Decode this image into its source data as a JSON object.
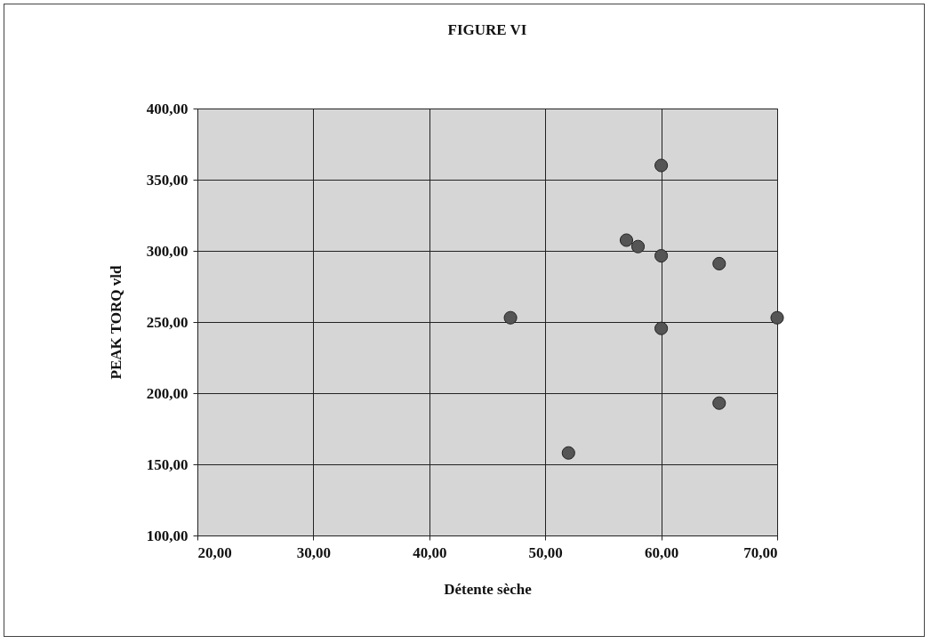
{
  "chart_data": {
    "type": "scatter",
    "title": "FIGURE VI",
    "xlabel": "Détente sèche",
    "ylabel": "PEAK TORQ vld",
    "x": [
      47,
      52,
      57,
      58,
      60,
      60,
      60,
      65,
      65,
      70
    ],
    "series": [
      {
        "color": "#555555",
        "values": [
          253,
          158,
          307.5,
          303,
          360,
          296.5,
          245.5,
          291,
          193,
          253
        ]
      }
    ],
    "xlim": [
      20,
      70
    ],
    "ylim": [
      100,
      400
    ],
    "xticks": [
      {
        "value": 20,
        "label": "20,00"
      },
      {
        "value": 30,
        "label": "30,00"
      },
      {
        "value": 40,
        "label": "40,00"
      },
      {
        "value": 50,
        "label": "50,00"
      },
      {
        "value": 60,
        "label": "60,00"
      },
      {
        "value": 70,
        "label": "70,00"
      }
    ],
    "yticks": [
      {
        "value": 100,
        "label": "100,00"
      },
      {
        "value": 150,
        "label": "150,00"
      },
      {
        "value": 200,
        "label": "200,00"
      },
      {
        "value": 250,
        "label": "250,00"
      },
      {
        "value": 300,
        "label": "300,00"
      },
      {
        "value": 350,
        "label": "350,00"
      },
      {
        "value": 400,
        "label": "400,00"
      }
    ],
    "grid": true,
    "marker": "circle"
  }
}
